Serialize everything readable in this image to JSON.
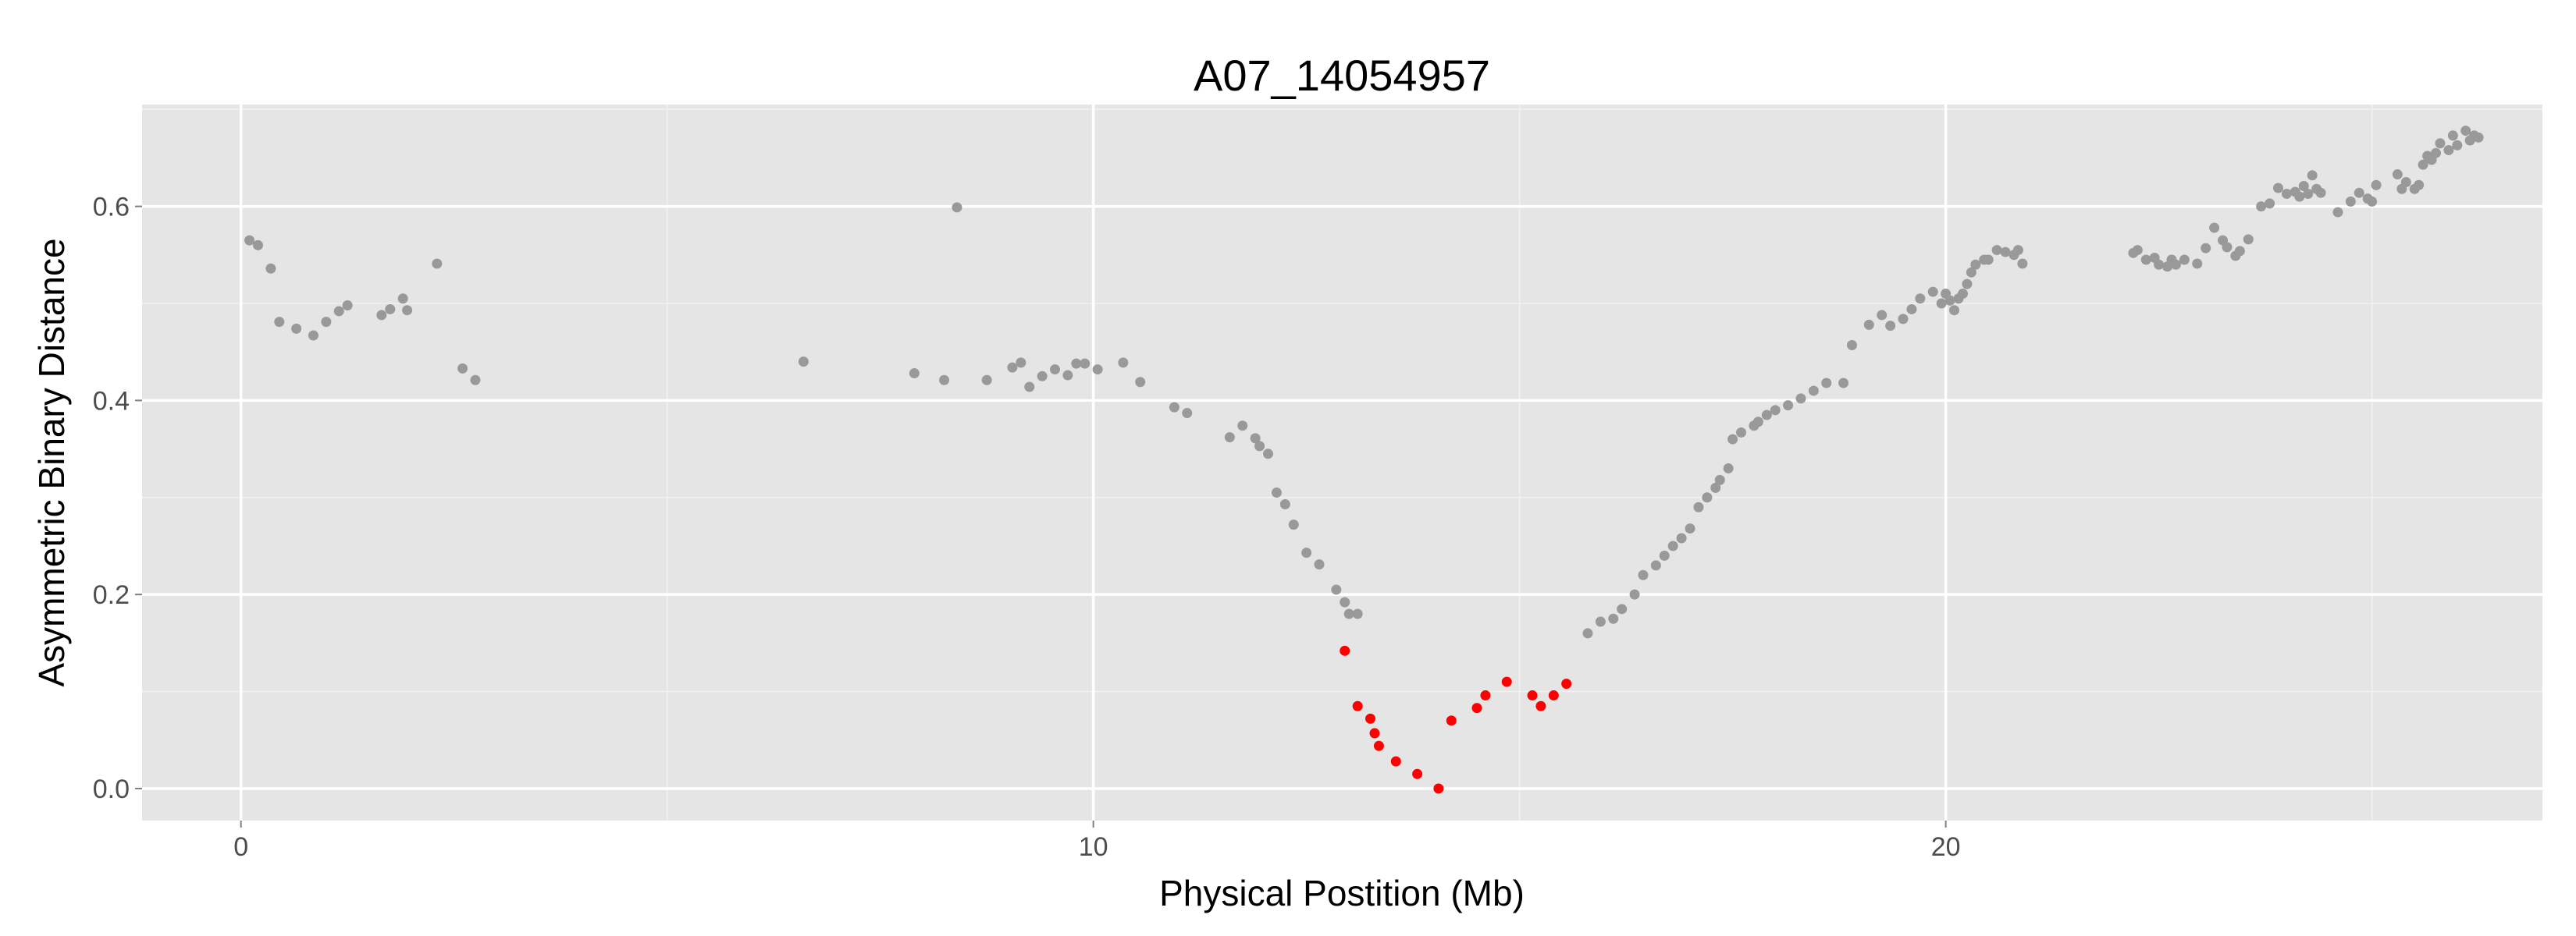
{
  "chart_data": {
    "type": "scatter",
    "title": "A07_14054957",
    "xlabel": "Physical Postition (Mb)",
    "ylabel": "Asymmetric Binary Distance",
    "xlim": [
      -1.16,
      27.0
    ],
    "ylim": [
      -0.033,
      0.705
    ],
    "xticks": [
      0,
      10,
      20
    ],
    "yticks": [
      0.0,
      0.2,
      0.4,
      0.6
    ],
    "xtick_labels": [
      "0",
      "10",
      "20"
    ],
    "ytick_labels": [
      "0.0",
      "0.2",
      "0.4",
      "0.6"
    ],
    "grid": true,
    "legend": "none",
    "colors": {
      "panel": "#e5e5e5",
      "grid": "#ffffff",
      "default_point": "#999999",
      "highlight_point": "#ff0000"
    },
    "series": [
      {
        "color": "#999999",
        "x": [
          0.1,
          0.2,
          0.35,
          0.45,
          0.65,
          0.85,
          1.0,
          1.15,
          1.25,
          1.65,
          1.75,
          1.9,
          1.95,
          2.3,
          2.6,
          2.75,
          6.6,
          7.9,
          8.25,
          8.4,
          8.75,
          9.05,
          9.15,
          9.25,
          9.4,
          9.55,
          9.7,
          9.8,
          9.9,
          10.05,
          10.35,
          10.55,
          10.95,
          11.1,
          11.6,
          11.75,
          11.9,
          11.95,
          12.05,
          12.15,
          12.25,
          12.35,
          12.5,
          12.65,
          12.85,
          12.95,
          13.0,
          13.1,
          15.8,
          15.95,
          16.1,
          16.2,
          16.35,
          16.45,
          16.6,
          16.7,
          16.8,
          16.9,
          17.0,
          17.1,
          17.2,
          17.3,
          17.35,
          17.45,
          17.5,
          17.6,
          17.75,
          17.8,
          17.9,
          18.0,
          18.15,
          18.3,
          18.45,
          18.6,
          18.8,
          18.9,
          19.1,
          19.25,
          19.35,
          19.5,
          19.6,
          19.7,
          19.85,
          19.95,
          20.0,
          20.05,
          20.1,
          20.15,
          20.2,
          20.25,
          20.3,
          20.35,
          20.45,
          20.5,
          20.6,
          20.7,
          20.8,
          20.85,
          20.9,
          22.2,
          22.25,
          22.35,
          22.45,
          22.5,
          22.6,
          22.65,
          22.7,
          22.8,
          22.95,
          23.05,
          23.15,
          23.25,
          23.3,
          23.4,
          23.45,
          23.55,
          23.7,
          23.8,
          23.9,
          24.0,
          24.1,
          24.15,
          24.2,
          24.25,
          24.3,
          24.35,
          24.4,
          24.6,
          24.75,
          24.85,
          24.95,
          25.0,
          25.05,
          25.3,
          25.35,
          25.4,
          25.5,
          25.55,
          25.6,
          25.65,
          25.7,
          25.75,
          25.8,
          25.9,
          25.95,
          26.0,
          26.1,
          26.15,
          26.2,
          26.25
        ],
        "y": [
          0.565,
          0.56,
          0.536,
          0.481,
          0.474,
          0.467,
          0.481,
          0.492,
          0.498,
          0.488,
          0.494,
          0.505,
          0.493,
          0.541,
          0.433,
          0.421,
          0.44,
          0.428,
          0.421,
          0.599,
          0.421,
          0.434,
          0.439,
          0.414,
          0.425,
          0.432,
          0.426,
          0.438,
          0.438,
          0.432,
          0.439,
          0.419,
          0.393,
          0.387,
          0.362,
          0.374,
          0.361,
          0.353,
          0.345,
          0.305,
          0.293,
          0.272,
          0.243,
          0.231,
          0.205,
          0.192,
          0.18,
          0.18,
          0.16,
          0.172,
          0.175,
          0.185,
          0.2,
          0.22,
          0.23,
          0.24,
          0.25,
          0.258,
          0.268,
          0.29,
          0.3,
          0.31,
          0.318,
          0.33,
          0.36,
          0.367,
          0.374,
          0.378,
          0.385,
          0.39,
          0.395,
          0.402,
          0.41,
          0.418,
          0.418,
          0.457,
          0.478,
          0.488,
          0.477,
          0.484,
          0.494,
          0.505,
          0.512,
          0.5,
          0.51,
          0.503,
          0.493,
          0.505,
          0.51,
          0.52,
          0.532,
          0.54,
          0.545,
          0.545,
          0.555,
          0.553,
          0.55,
          0.555,
          0.541,
          0.552,
          0.555,
          0.545,
          0.547,
          0.54,
          0.538,
          0.545,
          0.54,
          0.545,
          0.541,
          0.557,
          0.578,
          0.565,
          0.558,
          0.549,
          0.554,
          0.566,
          0.6,
          0.603,
          0.619,
          0.613,
          0.615,
          0.61,
          0.621,
          0.613,
          0.632,
          0.618,
          0.614,
          0.594,
          0.605,
          0.614,
          0.608,
          0.605,
          0.622,
          0.633,
          0.618,
          0.625,
          0.618,
          0.622,
          0.643,
          0.652,
          0.648,
          0.655,
          0.665,
          0.658,
          0.673,
          0.663,
          0.678,
          0.668,
          0.673,
          0.671
        ]
      },
      {
        "color": "#ff0000",
        "x": [
          12.95,
          13.1,
          13.25,
          13.3,
          13.35,
          13.55,
          13.8,
          14.05,
          14.2,
          14.5,
          14.6,
          14.85,
          15.15,
          15.25,
          15.4,
          15.55
        ],
        "y": [
          0.142,
          0.085,
          0.072,
          0.057,
          0.044,
          0.028,
          0.015,
          0.0,
          0.07,
          0.083,
          0.096,
          0.11,
          0.096,
          0.085,
          0.096,
          0.108
        ]
      }
    ]
  }
}
